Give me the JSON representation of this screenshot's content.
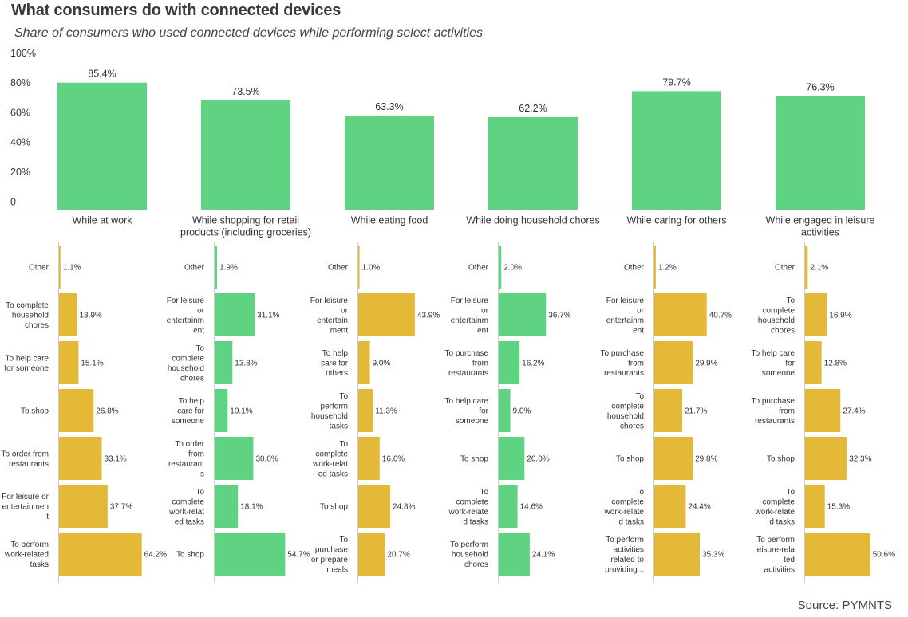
{
  "header": {
    "title": "What consumers do with connected devices",
    "subtitle": "Share of consumers who used connected devices while performing select activities"
  },
  "footer": {
    "source": "Source: PYMNTS"
  },
  "colors": {
    "green": "#5fd381",
    "gold": "#e3b937",
    "axis": "#cccccc",
    "text": "#333333"
  },
  "chart_data": [
    {
      "type": "bar",
      "title": "What consumers do with connected devices",
      "subtitle": "Share of consumers who used connected devices while performing select activities",
      "xlabel": "",
      "ylabel": "",
      "ylim": [
        0,
        100
      ],
      "yticks": [
        0,
        20,
        40,
        60,
        80,
        100
      ],
      "ytick_labels": [
        "0",
        "20%",
        "40%",
        "60%",
        "80%",
        "100%"
      ],
      "grid": false,
      "categories": [
        [
          "While at work"
        ],
        [
          "While shopping for retail",
          "products (including groceries)"
        ],
        [
          "While eating food"
        ],
        [
          "While doing household chores"
        ],
        [
          "While caring for others"
        ],
        [
          "While engaged in leisure",
          "activities"
        ]
      ],
      "values": [
        85.4,
        73.5,
        63.3,
        62.2,
        79.7,
        76.3
      ],
      "data_labels": [
        "85.4%",
        "73.5%",
        "63.3%",
        "62.2%",
        "79.7%",
        "76.3%"
      ],
      "color": "green"
    },
    {
      "type": "bar",
      "orientation": "horizontal",
      "parent": "While at work",
      "color": "gold",
      "xlim": [
        0,
        100
      ],
      "categories": [
        [
          "Other"
        ],
        [
          "To complete",
          "household",
          "chores"
        ],
        [
          "To help care",
          "for someone"
        ],
        [
          "To shop"
        ],
        [
          "To order from",
          "restaurants"
        ],
        [
          "For leisure or",
          "entertainmen",
          "t"
        ],
        [
          "To perform",
          "work-related",
          "tasks"
        ]
      ],
      "values": [
        1.1,
        13.9,
        15.1,
        26.8,
        33.1,
        37.7,
        64.2
      ],
      "data_labels": [
        "1.1%",
        "13.9%",
        "15.1%",
        "26.8%",
        "33.1%",
        "37.7%",
        "64.2%"
      ]
    },
    {
      "type": "bar",
      "orientation": "horizontal",
      "parent": "While shopping for retail products (including groceries)",
      "color": "green",
      "xlim": [
        0,
        100
      ],
      "categories": [
        [
          "Other"
        ],
        [
          "For leisure",
          "or",
          "entertainm",
          "ent"
        ],
        [
          "To",
          "complete",
          "household",
          "chores"
        ],
        [
          "To help",
          "care for",
          "someone"
        ],
        [
          "To order",
          "from",
          "restaurant",
          "s"
        ],
        [
          "To",
          "complete",
          "work-relat",
          "ed tasks"
        ],
        [
          "To shop"
        ]
      ],
      "values": [
        1.9,
        31.1,
        13.8,
        10.1,
        30.0,
        18.1,
        54.7
      ],
      "data_labels": [
        "1.9%",
        "31.1%",
        "13.8%",
        "10.1%",
        "30.0%",
        "18.1%",
        "54.7%"
      ]
    },
    {
      "type": "bar",
      "orientation": "horizontal",
      "parent": "While eating food",
      "color": "gold",
      "xlim": [
        0,
        100
      ],
      "categories": [
        [
          "Other"
        ],
        [
          "For leisure",
          "or",
          "entertain",
          "ment"
        ],
        [
          "To help",
          "care for",
          "others"
        ],
        [
          "To",
          "perform",
          "household",
          "tasks"
        ],
        [
          "To",
          "complete",
          "work-relat",
          "ed tasks"
        ],
        [
          "To shop"
        ],
        [
          "To",
          "purchase",
          "or prepare",
          "meals"
        ]
      ],
      "values": [
        1.0,
        43.9,
        9.0,
        11.3,
        16.6,
        24.8,
        20.7
      ],
      "data_labels": [
        "1.0%",
        "43.9%",
        "9.0%",
        "11.3%",
        "16.6%",
        "24.8%",
        "20.7%"
      ]
    },
    {
      "type": "bar",
      "orientation": "horizontal",
      "parent": "While doing household chores",
      "color": "green",
      "xlim": [
        0,
        100
      ],
      "categories": [
        [
          "Other"
        ],
        [
          "For leisure",
          "or",
          "entertainm",
          "ent"
        ],
        [
          "To purchase",
          "from",
          "restaurants"
        ],
        [
          "To help care",
          "for",
          "someone"
        ],
        [
          "To shop"
        ],
        [
          "To",
          "complete",
          "work-relate",
          "d tasks"
        ],
        [
          "To perform",
          "household",
          "chores"
        ]
      ],
      "values": [
        2.0,
        36.7,
        16.2,
        9.0,
        20.0,
        14.6,
        24.1
      ],
      "data_labels": [
        "2.0%",
        "36.7%",
        "16.2%",
        "9.0%",
        "20.0%",
        "14.6%",
        "24.1%"
      ]
    },
    {
      "type": "bar",
      "orientation": "horizontal",
      "parent": "While caring for others",
      "color": "gold",
      "xlim": [
        0,
        100
      ],
      "categories": [
        [
          "Other"
        ],
        [
          "For leisure",
          "or",
          "entertainm",
          "ent"
        ],
        [
          "To purchase",
          "from",
          "restaurants"
        ],
        [
          "To",
          "complete",
          "household",
          "chores"
        ],
        [
          "To shop"
        ],
        [
          "To",
          "complete",
          "work-relate",
          "d tasks"
        ],
        [
          "To perform",
          "activities",
          "related to",
          "providing..."
        ]
      ],
      "values": [
        1.2,
        40.7,
        29.9,
        21.7,
        29.8,
        24.4,
        35.3
      ],
      "data_labels": [
        "1.2%",
        "40.7%",
        "29.9%",
        "21.7%",
        "29.8%",
        "24.4%",
        "35.3%"
      ]
    },
    {
      "type": "bar",
      "orientation": "horizontal",
      "parent": "While engaged in leisure activities",
      "color": "gold",
      "xlim": [
        0,
        100
      ],
      "categories": [
        [
          "Other"
        ],
        [
          "To",
          "complete",
          "household",
          "chores"
        ],
        [
          "To help care",
          "for",
          "someone"
        ],
        [
          "To purchase",
          "from",
          "restaurants"
        ],
        [
          "To shop"
        ],
        [
          "To",
          "complete",
          "work-relate",
          "d tasks"
        ],
        [
          "To perform",
          "leisure-rela",
          "ted",
          "activities"
        ]
      ],
      "values": [
        2.1,
        16.9,
        12.8,
        27.4,
        32.3,
        15.3,
        50.6
      ],
      "data_labels": [
        "2.1%",
        "16.9%",
        "12.8%",
        "27.4%",
        "32.3%",
        "15.3%",
        "50.6%"
      ]
    }
  ]
}
